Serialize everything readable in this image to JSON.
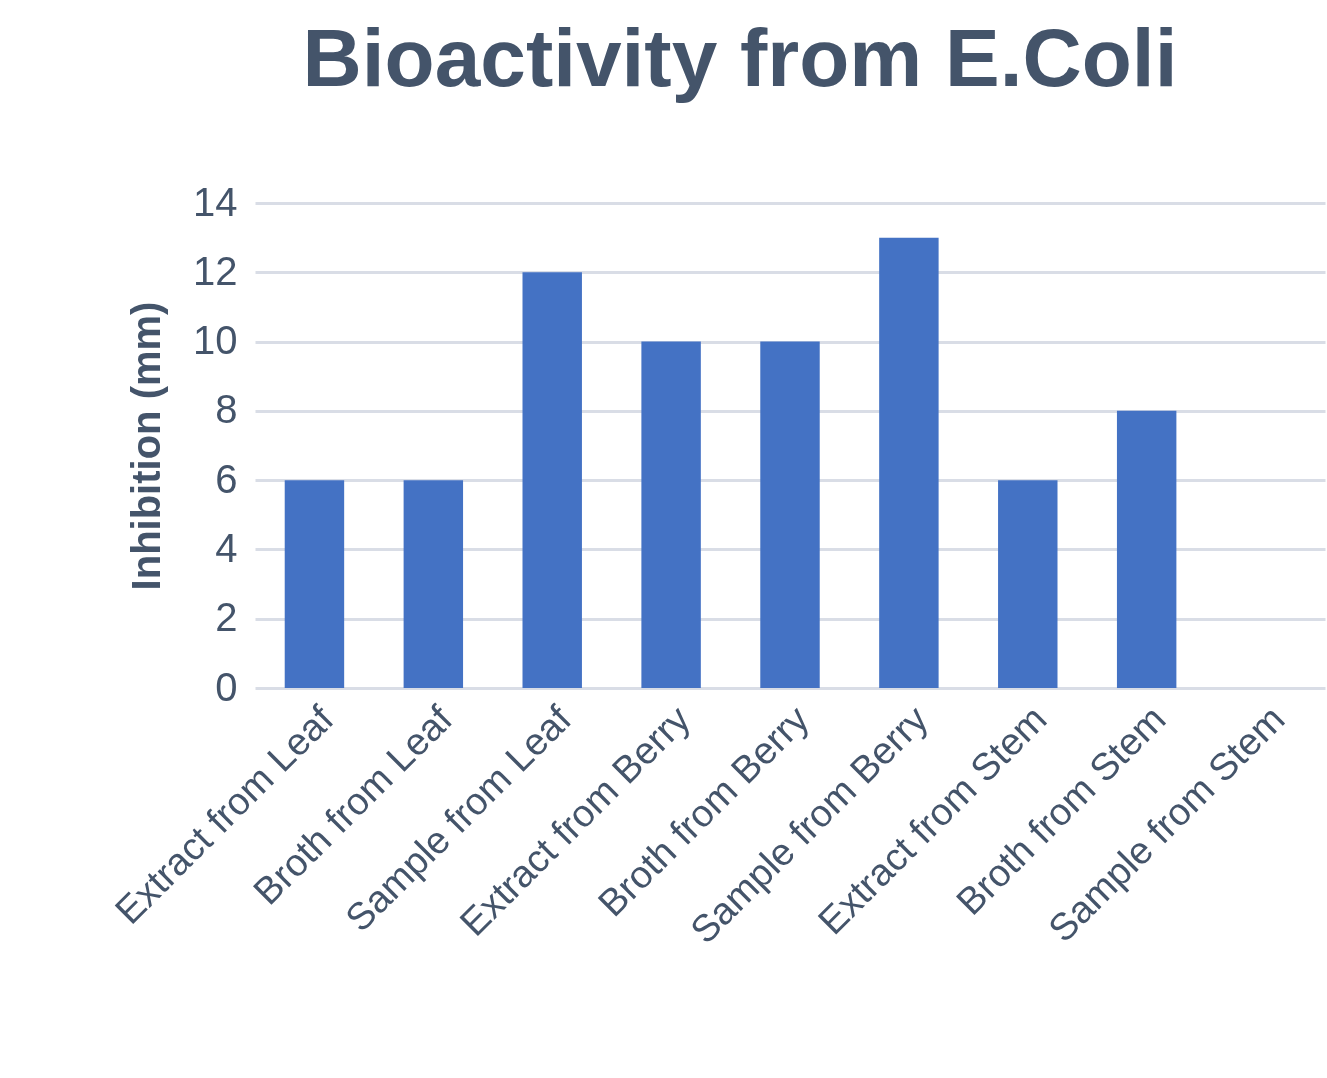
{
  "chart_data": {
    "type": "bar",
    "title": "Bioactivity from E.Coli",
    "ylabel": "Inhibition (mm)",
    "categories": [
      "Extract from Leaf",
      "Broth from Leaf",
      "Sample from Leaf",
      "Extract from Berry",
      "Broth from Berry",
      "Sample from Berry",
      "Extract from Stem",
      "Broth from Stem",
      "Sample from Stem"
    ],
    "values": [
      6,
      6,
      12,
      10,
      10,
      13,
      6,
      8,
      0
    ],
    "color": "#4472c4",
    "ylim": [
      0,
      14
    ],
    "yticks": [
      0,
      2,
      4,
      6,
      8,
      10,
      12,
      14
    ],
    "grid": "y"
  }
}
